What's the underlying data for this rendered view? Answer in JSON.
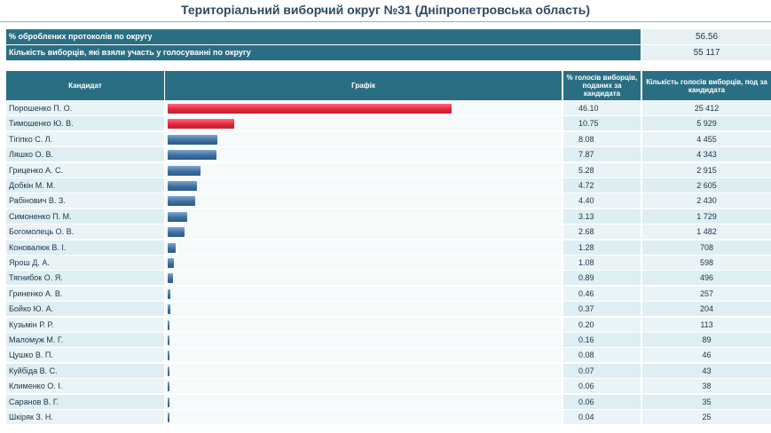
{
  "page": {
    "title": "Територіальний виборчий округ №31 (Дніпропетровська область)"
  },
  "summary": [
    {
      "label": "% оброблених протоколів по округу",
      "value": "56.56"
    },
    {
      "label": "Кількість виборців, які взяли участь у голосуванні по округу",
      "value": "55 117"
    }
  ],
  "table": {
    "headers": {
      "candidate": "Кандидат",
      "graph": "Графік",
      "percent": "% голосів виборців, поданих за кандидата",
      "votes": "Кількість голосів виборців, под за кандидата"
    },
    "rows": [
      {
        "name": "Порошенко П. О.",
        "percent": "46.10",
        "votes": "25 412",
        "share": 46.1,
        "color": "red"
      },
      {
        "name": "Тимошенко Ю. В.",
        "percent": "10.75",
        "votes": "5 929",
        "share": 10.75,
        "color": "red"
      },
      {
        "name": "Тігіпко С. Л.",
        "percent": "8.08",
        "votes": "4 455",
        "share": 8.08,
        "color": "blue"
      },
      {
        "name": "Ляшко О. В.",
        "percent": "7.87",
        "votes": "4 343",
        "share": 7.87,
        "color": "blue"
      },
      {
        "name": "Гриценко А. С.",
        "percent": "5.28",
        "votes": "2 915",
        "share": 5.28,
        "color": "blue"
      },
      {
        "name": "Добкін М. М.",
        "percent": "4.72",
        "votes": "2 605",
        "share": 4.72,
        "color": "blue"
      },
      {
        "name": "Рабінович В. З.",
        "percent": "4.40",
        "votes": "2 430",
        "share": 4.4,
        "color": "blue"
      },
      {
        "name": "Симоненко П. М.",
        "percent": "3.13",
        "votes": "1 729",
        "share": 3.13,
        "color": "blue"
      },
      {
        "name": "Богомолець О. В.",
        "percent": "2.68",
        "votes": "1 482",
        "share": 2.68,
        "color": "blue"
      },
      {
        "name": "Коновалюк В. І.",
        "percent": "1.28",
        "votes": "708",
        "share": 1.28,
        "color": "blue"
      },
      {
        "name": "Ярош Д. А.",
        "percent": "1.08",
        "votes": "598",
        "share": 1.08,
        "color": "blue"
      },
      {
        "name": "Тягнибок О. Я.",
        "percent": "0.89",
        "votes": "496",
        "share": 0.89,
        "color": "blue"
      },
      {
        "name": "Гриненко А. В.",
        "percent": "0.46",
        "votes": "257",
        "share": 0.46,
        "color": "blue"
      },
      {
        "name": "Бойко Ю. А.",
        "percent": "0.37",
        "votes": "204",
        "share": 0.37,
        "color": "blue"
      },
      {
        "name": "Кузьмін Р. Р.",
        "percent": "0.20",
        "votes": "113",
        "share": 0.2,
        "color": "blue"
      },
      {
        "name": "Маломуж М. Г.",
        "percent": "0.16",
        "votes": "89",
        "share": 0.16,
        "color": "blue"
      },
      {
        "name": "Цушко В. П.",
        "percent": "0.08",
        "votes": "46",
        "share": 0.08,
        "color": "blue"
      },
      {
        "name": "Куйбіда В. С.",
        "percent": "0.07",
        "votes": "43",
        "share": 0.07,
        "color": "blue"
      },
      {
        "name": "Клименко О. І.",
        "percent": "0.06",
        "votes": "38",
        "share": 0.06,
        "color": "blue"
      },
      {
        "name": "Саранов В. Г.",
        "percent": "0.06",
        "votes": "35",
        "share": 0.06,
        "color": "blue"
      },
      {
        "name": "Шкіряк З. Н.",
        "percent": "0.04",
        "votes": "25",
        "share": 0.04,
        "color": "blue"
      }
    ]
  }
}
